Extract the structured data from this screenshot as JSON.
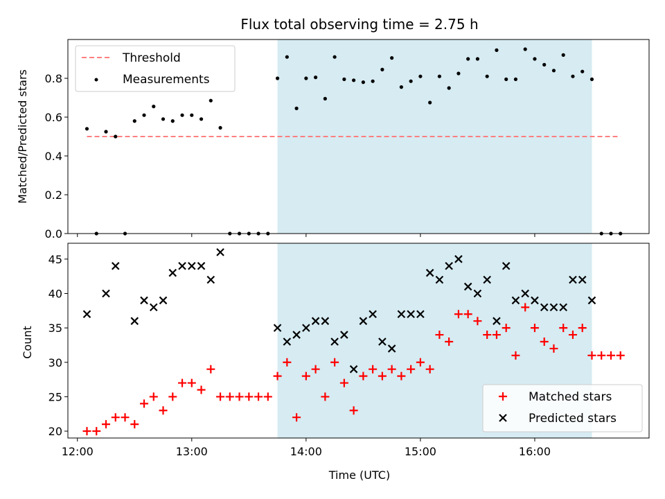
{
  "title": "Flux total observing time = 2.75 h",
  "colors": {
    "threshold": "#ff7f7f",
    "measurement": "#000000",
    "matched": "#ff0000",
    "predicted": "#000000",
    "highlight": "#add8e6"
  },
  "chart_data": [
    {
      "type": "scatter",
      "ylabel": "Matched/Predicted stars",
      "ylim": [
        0,
        1.0
      ],
      "yticks": [
        0.0,
        0.2,
        0.4,
        0.6,
        0.8
      ],
      "ytick_labels": [
        "0.0",
        "0.2",
        "0.4",
        "0.6",
        "0.8"
      ],
      "xlim": [
        "11:55",
        "17:00"
      ],
      "highlight_span": {
        "start": "13:45",
        "end": "16:30"
      },
      "legend_position": "upper-left",
      "legend": [
        {
          "label": "Threshold",
          "marker": "dashed-line"
        },
        {
          "label": "Measurements",
          "marker": "dot"
        }
      ],
      "threshold": {
        "name": "Threshold",
        "y": 0.5,
        "x_start": "12:05",
        "x_end": "16:45"
      },
      "series": [
        {
          "name": "Measurements",
          "x": [
            "12:05",
            "12:10",
            "12:15",
            "12:20",
            "12:25",
            "12:30",
            "12:35",
            "12:40",
            "12:45",
            "12:50",
            "12:55",
            "13:00",
            "13:05",
            "13:10",
            "13:15",
            "13:20",
            "13:25",
            "13:30",
            "13:35",
            "13:40",
            "13:45",
            "13:50",
            "13:55",
            "14:00",
            "14:05",
            "14:10",
            "14:15",
            "14:20",
            "14:25",
            "14:30",
            "14:35",
            "14:40",
            "14:45",
            "14:50",
            "14:55",
            "15:00",
            "15:05",
            "15:10",
            "15:15",
            "15:20",
            "15:25",
            "15:30",
            "15:35",
            "15:40",
            "15:45",
            "15:50",
            "15:55",
            "16:00",
            "16:05",
            "16:10",
            "16:15",
            "16:20",
            "16:25",
            "16:30",
            "16:35",
            "16:40",
            "16:45"
          ],
          "y": [
            0.54,
            0.0,
            0.525,
            0.5,
            0.0,
            0.58,
            0.61,
            0.655,
            0.59,
            0.58,
            0.61,
            0.61,
            0.59,
            0.685,
            0.545,
            0.0,
            0.0,
            0.0,
            0.0,
            0.0,
            0.8,
            0.91,
            0.645,
            0.8,
            0.805,
            0.695,
            0.91,
            0.795,
            0.79,
            0.78,
            0.785,
            0.845,
            0.905,
            0.755,
            0.785,
            0.81,
            0.675,
            0.81,
            0.75,
            0.825,
            0.9,
            0.9,
            0.81,
            0.945,
            0.795,
            0.795,
            0.95,
            0.9,
            0.87,
            0.84,
            0.92,
            0.81,
            0.835,
            0.795,
            0.0,
            0.0,
            0.0
          ]
        }
      ]
    },
    {
      "type": "scatter",
      "xlabel": "Time (UTC)",
      "ylabel": "Count",
      "ylim": [
        19,
        47.3
      ],
      "yticks": [
        20,
        25,
        30,
        35,
        40,
        45
      ],
      "ytick_labels": [
        "20",
        "25",
        "30",
        "35",
        "40",
        "45"
      ],
      "xlim": [
        "11:55",
        "17:00"
      ],
      "xticks": [
        "12:00",
        "13:00",
        "14:00",
        "15:00",
        "16:00"
      ],
      "xtick_labels": [
        "12:00",
        "13:00",
        "14:00",
        "15:00",
        "16:00"
      ],
      "highlight_span": {
        "start": "13:45",
        "end": "16:30"
      },
      "legend_position": "lower-right",
      "legend": [
        {
          "label": "Matched stars",
          "marker": "plus"
        },
        {
          "label": "Predicted stars",
          "marker": "cross"
        }
      ],
      "series": [
        {
          "name": "Matched stars",
          "x": [
            "12:05",
            "12:10",
            "12:15",
            "12:20",
            "12:25",
            "12:30",
            "12:35",
            "12:40",
            "12:45",
            "12:50",
            "12:55",
            "13:00",
            "13:05",
            "13:10",
            "13:15",
            "13:20",
            "13:25",
            "13:30",
            "13:35",
            "13:40",
            "13:45",
            "13:50",
            "13:55",
            "14:00",
            "14:05",
            "14:10",
            "14:15",
            "14:20",
            "14:25",
            "14:30",
            "14:35",
            "14:40",
            "14:45",
            "14:50",
            "14:55",
            "15:00",
            "15:05",
            "15:10",
            "15:15",
            "15:20",
            "15:25",
            "15:30",
            "15:35",
            "15:40",
            "15:45",
            "15:50",
            "15:55",
            "16:00",
            "16:05",
            "16:10",
            "16:15",
            "16:20",
            "16:25",
            "16:30",
            "16:35",
            "16:40",
            "16:45"
          ],
          "y": [
            20,
            20,
            21,
            22,
            22,
            21,
            24,
            25,
            23,
            25,
            27,
            27,
            26,
            29,
            25,
            25,
            25,
            25,
            25,
            25,
            28,
            30,
            22,
            28,
            29,
            25,
            30,
            27,
            23,
            28,
            29,
            28,
            29,
            28,
            29,
            30,
            29,
            34,
            33,
            37,
            37,
            36,
            34,
            34,
            35,
            31,
            38,
            35,
            33,
            32,
            35,
            34,
            35,
            31,
            31,
            31,
            31
          ]
        },
        {
          "name": "Predicted stars",
          "x": [
            "12:05",
            "12:15",
            "12:20",
            "12:30",
            "12:35",
            "12:40",
            "12:45",
            "12:50",
            "12:55",
            "13:00",
            "13:05",
            "13:10",
            "13:15",
            "13:45",
            "13:50",
            "13:55",
            "14:00",
            "14:05",
            "14:10",
            "14:15",
            "14:20",
            "14:25",
            "14:30",
            "14:35",
            "14:40",
            "14:45",
            "14:50",
            "14:55",
            "15:00",
            "15:05",
            "15:10",
            "15:15",
            "15:20",
            "15:25",
            "15:30",
            "15:35",
            "15:40",
            "15:45",
            "15:50",
            "15:55",
            "16:00",
            "16:05",
            "16:10",
            "16:15",
            "16:20",
            "16:25",
            "16:30"
          ],
          "y": [
            37,
            40,
            44,
            36,
            39,
            38,
            39,
            43,
            44,
            44,
            44,
            42,
            46,
            35,
            33,
            34,
            35,
            36,
            36,
            33,
            34,
            29,
            36,
            37,
            33,
            32,
            37,
            37,
            37,
            43,
            42,
            44,
            45,
            41,
            40,
            42,
            36,
            44,
            39,
            40,
            39,
            38,
            38,
            38,
            42,
            42,
            39
          ]
        }
      ]
    }
  ]
}
